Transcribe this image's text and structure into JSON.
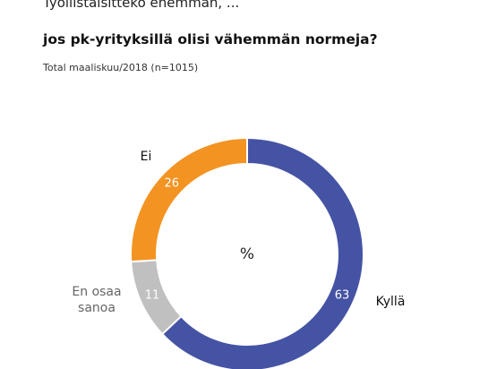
{
  "header": {
    "title_line1": "Työllistäisittekö enemmän, ...",
    "title_line2": "jos pk-yrityksillä olisi vähemmän normeja?",
    "subtitle": "Total maaliskuu/2018  (n=1015)"
  },
  "chart_data": {
    "type": "pie",
    "variant": "donut",
    "center_label": "%",
    "slices": [
      {
        "label": "Kyllä",
        "value": 63,
        "value_label": "63",
        "color": "#4553a4"
      },
      {
        "label": "En osaa sanoa",
        "label_lines": [
          "En osaa",
          "sanoa"
        ],
        "value": 11,
        "value_label": "11",
        "color": "#c0c0c0"
      },
      {
        "label": "Ei",
        "value": 26,
        "value_label": "26",
        "color": "#f39322"
      }
    ],
    "start": "top",
    "direction": "clockwise",
    "legend": "none"
  }
}
